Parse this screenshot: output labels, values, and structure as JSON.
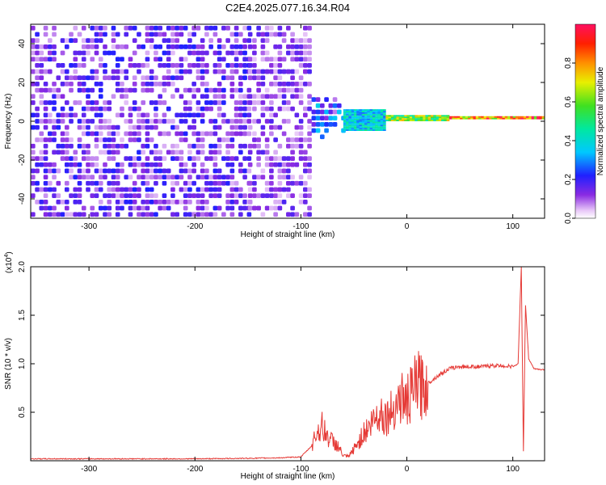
{
  "title": "C2E4.2025.077.16.34.R04",
  "colors": {
    "snr_line": "#e53935",
    "axis": "#000000",
    "background": "#ffffff"
  },
  "chart_data": [
    {
      "type": "heatmap",
      "xlabel": "Height of straight line (km)",
      "ylabel": "Frequency (Hz)",
      "xlim": [
        -355,
        130
      ],
      "ylim": [
        -50,
        50
      ],
      "xticks": [
        -300,
        -200,
        -100,
        0,
        100
      ],
      "xtick_labels": [
        "-300",
        "-200",
        "-100",
        "0",
        "100"
      ],
      "yticks": [
        -40,
        -20,
        0,
        20,
        40
      ],
      "ytick_labels": [
        "-40",
        "-20",
        "0",
        "20",
        "40"
      ],
      "colorbar": {
        "label": "Normalized spectral amplitude",
        "range": [
          0,
          1
        ],
        "ticks": [
          0.0,
          0.2,
          0.4,
          0.6,
          0.8
        ],
        "tick_labels": [
          "0.0",
          "0.2",
          "0.4",
          "0.6",
          "0.8"
        ]
      },
      "regions": [
        {
          "x_range": [
            -355,
            -150
          ],
          "freq_range": [
            -50,
            50
          ],
          "amplitude": 0.15
        },
        {
          "x_range": [
            -150,
            -90
          ],
          "freq_range": [
            -50,
            50
          ],
          "amplitude": 0.12
        },
        {
          "x_range": [
            -90,
            -60
          ],
          "freq_range": [
            -10,
            10
          ],
          "amplitude": 0.25
        },
        {
          "x_range": [
            -60,
            -20
          ],
          "freq_range": [
            -5,
            6
          ],
          "amplitude": 0.45
        },
        {
          "x_range": [
            -20,
            40
          ],
          "freq_range": [
            0,
            3
          ],
          "amplitude": 0.7
        },
        {
          "x_range": [
            40,
            130
          ],
          "freq_range": [
            1,
            2
          ],
          "amplitude": 0.95
        }
      ]
    },
    {
      "type": "line",
      "xlabel": "Height of straight line (km)",
      "ylabel": "SNR (10 * v/v)",
      "multiplier_label": "(x10",
      "multiplier_exp": "4",
      "multiplier_close": ")",
      "xlim": [
        -355,
        130
      ],
      "ylim": [
        0,
        2.0
      ],
      "xticks": [
        -300,
        -200,
        -100,
        0,
        100
      ],
      "xtick_labels": [
        "-300",
        "-200",
        "-100",
        "0",
        "100"
      ],
      "yticks": [
        0.5,
        1.0,
        1.5,
        2.0
      ],
      "ytick_labels": [
        "0.5",
        "1.0",
        "1.5",
        "2.0"
      ],
      "series": [
        {
          "x": [
            -355,
            -300,
            -250,
            -200,
            -150,
            -120,
            -100,
            -90,
            -85,
            -80,
            -75,
            -70,
            -65,
            -60,
            -55,
            -50,
            -45,
            -40,
            -35,
            -30,
            -25,
            -20,
            -15,
            -10,
            -5,
            0,
            5,
            10,
            15,
            20,
            30,
            40,
            50,
            60,
            70,
            80,
            90,
            100,
            105,
            108,
            110,
            112,
            115,
            120,
            125,
            130
          ],
          "y": [
            0.02,
            0.02,
            0.02,
            0.02,
            0.025,
            0.03,
            0.04,
            0.15,
            0.3,
            0.35,
            0.25,
            0.2,
            0.15,
            0.05,
            0.04,
            0.12,
            0.2,
            0.3,
            0.35,
            0.45,
            0.5,
            0.45,
            0.5,
            0.6,
            0.65,
            0.6,
            0.7,
            0.8,
            0.75,
            0.8,
            0.88,
            0.95,
            0.97,
            0.97,
            0.97,
            0.98,
            0.98,
            0.97,
            1.0,
            2.0,
            0.1,
            1.6,
            1.05,
            0.95,
            0.94,
            0.94
          ]
        }
      ]
    }
  ]
}
